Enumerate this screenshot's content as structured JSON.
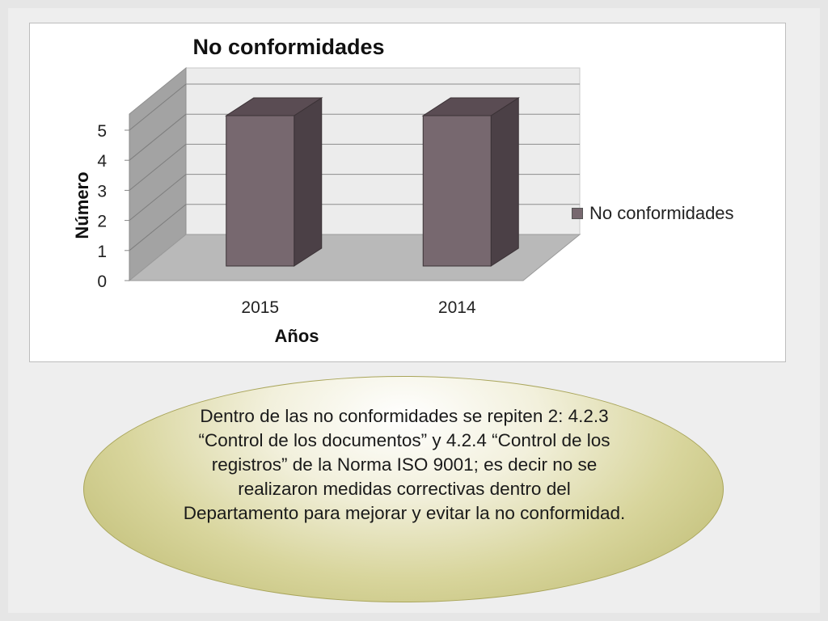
{
  "chart_data": {
    "type": "bar",
    "title": "No conformidades",
    "xlabel": "Años",
    "ylabel": "Número",
    "categories": [
      "2015",
      "2014"
    ],
    "series": [
      {
        "name": "No conformidades",
        "values": [
          5,
          5
        ],
        "color": "#77686f"
      }
    ],
    "ylim": [
      0,
      5
    ],
    "yticks": [
      "0",
      "1",
      "2",
      "3",
      "4",
      "5"
    ],
    "grid": true,
    "legend_position": "right",
    "style": "3d-column"
  },
  "callout": {
    "text": "Dentro de las no conformidades se repiten 2: 4.2.3 “Control de los documentos” y 4.2.4 “Control de los registros” de la Norma ISO 9001; es decir no se realizaron medidas correctivas dentro del Departamento para mejorar y evitar la no conformidad."
  }
}
